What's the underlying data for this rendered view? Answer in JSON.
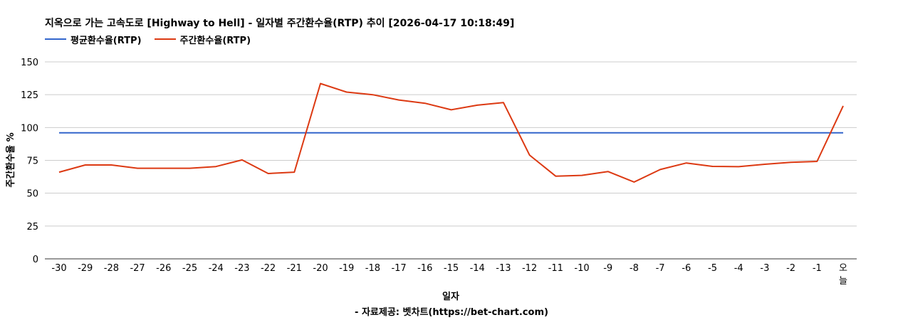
{
  "chart_data": {
    "type": "line",
    "title": "지옥으로 가는 고속도로 [Highway to Hell] - 일자별 주간환수율(RTP) 추이 [2026-04-17 10:18:49]",
    "xlabel": "일자",
    "ylabel": "주간환수율 %",
    "ylim": [
      0,
      150
    ],
    "yticks": [
      0,
      25,
      50,
      75,
      100,
      125,
      150
    ],
    "grid": true,
    "legend_position": "top-left",
    "categories": [
      "-30",
      "-29",
      "-28",
      "-27",
      "-26",
      "-25",
      "-24",
      "-23",
      "-22",
      "-21",
      "-20",
      "-19",
      "-18",
      "-17",
      "-16",
      "-15",
      "-14",
      "-13",
      "-12",
      "-11",
      "-10",
      "-9",
      "-8",
      "-7",
      "-6",
      "-5",
      "-4",
      "-3",
      "-2",
      "-1",
      "오늘"
    ],
    "series": [
      {
        "name": "평균환수율(RTP)",
        "color": "#3366cc",
        "values": [
          96,
          96,
          96,
          96,
          96,
          96,
          96,
          96,
          96,
          96,
          96,
          96,
          96,
          96,
          96,
          96,
          96,
          96,
          96,
          96,
          96,
          96,
          96,
          96,
          96,
          96,
          96,
          96,
          96,
          96,
          96
        ]
      },
      {
        "name": "주간환수율(RTP)",
        "color": "#dc3912",
        "values": [
          66,
          71.5,
          71.5,
          69,
          69,
          69,
          70.3,
          75.3,
          65,
          66,
          133.5,
          127,
          125,
          121,
          118.5,
          113.5,
          117,
          119,
          79,
          63,
          63.6,
          66.5,
          58.5,
          68,
          73,
          70.4,
          70.2,
          72,
          73.5,
          74.2,
          116.5
        ]
      }
    ]
  },
  "footer": {
    "credit": "- 자료제공: 벳차트(https://bet-chart.com)"
  }
}
